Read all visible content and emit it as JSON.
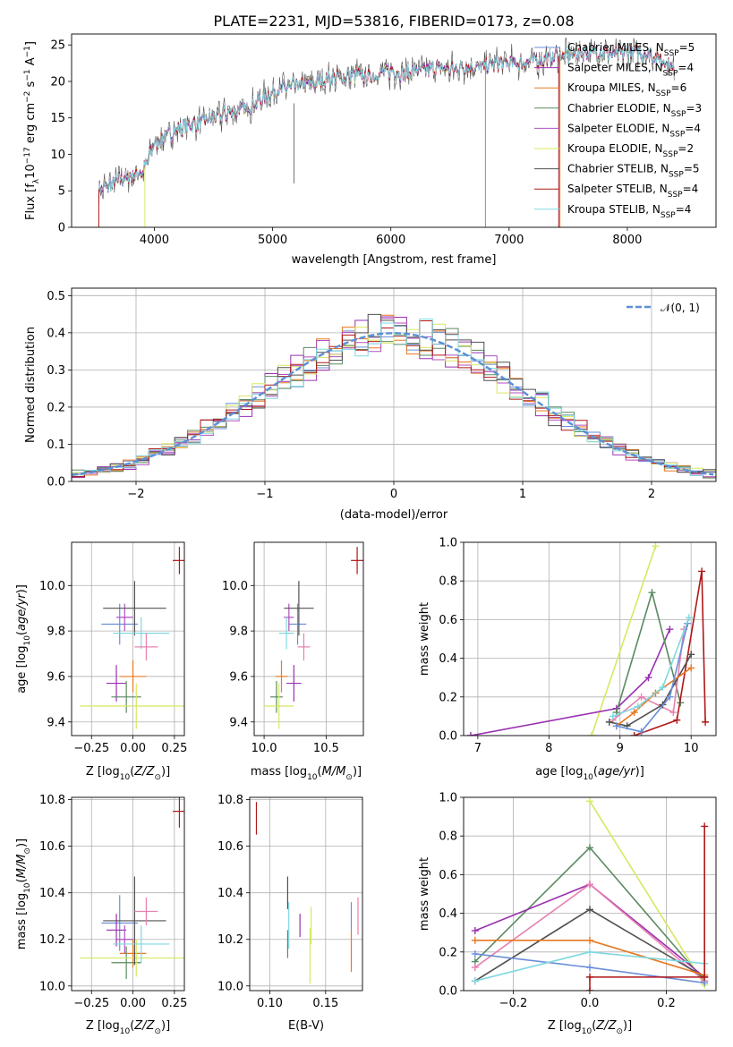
{
  "figure": {
    "title": "PLATE=2231, MJD=53816, FIBERID=0173, z=0.08"
  },
  "colors": {
    "Chabrier MILES": "#6a8fd8",
    "Salpeter MILES": "#9a30b0",
    "Kroupa MILES": "#e87820",
    "Chabrier ELODIE": "#5a8a60",
    "Salpeter ELODIE": "#b050c0",
    "Kroupa ELODIE": "#d8e860",
    "Chabrier STELIB": "#505050",
    "Salpeter STELIB": "#b01818",
    "Kroupa STELIB": "#80d8e0",
    "pink": "#e880b0",
    "gauss": "#5b8fd6"
  },
  "chart_data": [
    {
      "id": "spectrum",
      "type": "line",
      "xlabel": "wavelength [Angstrom, rest frame]",
      "ylabel": "Flux [f_λ10^-17 erg cm^-2 s^-1 A^-1]",
      "xlim": [
        3300,
        8750
      ],
      "ylim": [
        0,
        26.5
      ],
      "xticks": [
        4000,
        5000,
        6000,
        7000,
        8000
      ],
      "yticks": [
        0,
        5,
        10,
        15,
        20,
        25
      ],
      "x": [
        3530,
        3600,
        3700,
        3800,
        3900,
        4000,
        4100,
        4200,
        4300,
        4400,
        4500,
        4600,
        4700,
        4800,
        4900,
        5000,
        5100,
        5200,
        5300,
        5400,
        5500,
        5600,
        5700,
        5800,
        5900,
        6000,
        6100,
        6200,
        6300,
        6400,
        6500,
        6600,
        6700,
        6800,
        6900,
        7000,
        7100,
        7200,
        7300,
        7400,
        7500,
        7600,
        7700,
        7800,
        7900,
        8000,
        8100,
        8200,
        8300,
        8400
      ],
      "y": [
        5.2,
        5.5,
        6.5,
        7.0,
        7.5,
        11.5,
        12.5,
        13.5,
        14.0,
        14.5,
        15.0,
        15.5,
        16.0,
        16.5,
        17.5,
        18.5,
        19.0,
        19.5,
        19.5,
        20.0,
        20.5,
        20.5,
        21.0,
        20.5,
        21.0,
        21.5,
        21.0,
        21.5,
        21.5,
        22.0,
        21.5,
        22.0,
        22.0,
        22.0,
        22.5,
        22.5,
        22.5,
        23.0,
        23.0,
        23.5,
        23.5,
        24.0,
        24.0,
        24.0,
        23.5,
        24.0,
        24.0,
        23.5,
        23.0,
        21.5
      ],
      "legend": [
        {
          "label": "Chabrier MILES, N_SSP=5",
          "color": "#6a8fd8"
        },
        {
          "label": "Salpeter MILES, N_SSP=4",
          "color": "#9a30b0"
        },
        {
          "label": "Kroupa MILES, N_SSP=6",
          "color": "#e87820"
        },
        {
          "label": "Chabrier ELODIE, N_SSP=3",
          "color": "#5a8a60"
        },
        {
          "label": "Salpeter ELODIE, N_SSP=4",
          "color": "#b050c0"
        },
        {
          "label": "Kroupa ELODIE, N_SSP=2",
          "color": "#d8e860"
        },
        {
          "label": "Chabrier STELIB, N_SSP=5",
          "color": "#505050"
        },
        {
          "label": "Salpeter STELIB, N_SSP=4",
          "color": "#b01818"
        },
        {
          "label": "Kroupa STELIB, N_SSP=4",
          "color": "#80d8e0"
        }
      ],
      "legend_placement": "top-right",
      "grid": false
    },
    {
      "id": "residuals",
      "type": "histogram",
      "xlabel": "(data-model)/error",
      "ylabel": "Normed distribution",
      "xlim": [
        -2.5,
        2.5
      ],
      "ylim": [
        0,
        0.52
      ],
      "xticks": [
        -2,
        -1,
        0,
        1,
        2
      ],
      "yticks": [
        0.0,
        0.1,
        0.2,
        0.3,
        0.4,
        0.5
      ],
      "bin_width": 0.1,
      "gaussian_label": "𝒩(0, 1)",
      "grid": true,
      "legend_placement": "top-right"
    },
    {
      "id": "age_vs_Z",
      "type": "errorbar",
      "xlabel": "Z [log10(Z/Z☉)]",
      "ylabel": "age [log10(age/yr)]",
      "xlim": [
        -0.37,
        0.31
      ],
      "ylim": [
        9.34,
        10.19
      ],
      "xticks": [
        -0.25,
        0.0,
        0.25
      ],
      "yticks": [
        9.4,
        9.6,
        9.8,
        10.0
      ],
      "grid": true,
      "points": [
        {
          "color": "#6a8fd8",
          "x": -0.08,
          "xerr": 0.11,
          "y": 9.83,
          "yerr": 0.09
        },
        {
          "color": "#9a30b0",
          "x": -0.1,
          "xerr": 0.06,
          "y": 9.57,
          "yerr": 0.08
        },
        {
          "color": "#e87820",
          "x": 0.0,
          "xerr": 0.08,
          "y": 9.6,
          "yerr": 0.07
        },
        {
          "color": "#5a8a60",
          "x": -0.04,
          "xerr": 0.09,
          "y": 9.51,
          "yerr": 0.07
        },
        {
          "color": "#b050c0",
          "x": -0.05,
          "xerr": 0.05,
          "y": 9.86,
          "yerr": 0.06
        },
        {
          "color": "#d8e860",
          "x": 0.02,
          "xerr": 0.34,
          "y": 9.47,
          "yerr": 0.1
        },
        {
          "color": "#505050",
          "x": 0.01,
          "xerr": 0.19,
          "y": 9.9,
          "yerr": 0.12
        },
        {
          "color": "#b01818",
          "x": 0.28,
          "xerr": 0.04,
          "y": 10.11,
          "yerr": 0.06
        },
        {
          "color": "#80d8e0",
          "x": 0.05,
          "xerr": 0.17,
          "y": 9.79,
          "yerr": 0.07
        },
        {
          "color": "#e880b0",
          "x": 0.08,
          "xerr": 0.07,
          "y": 9.73,
          "yerr": 0.06
        }
      ]
    },
    {
      "id": "age_vs_mass",
      "type": "errorbar",
      "xlabel": "mass [log10(M/M☉)]",
      "ylabel": "",
      "xlim": [
        9.92,
        10.8
      ],
      "ylim": [
        9.34,
        10.19
      ],
      "xticks": [
        10.0,
        10.5
      ],
      "yticks": [
        9.4,
        9.6,
        9.8,
        10.0
      ],
      "grid": true,
      "points": [
        {
          "color": "#6a8fd8",
          "x": 10.27,
          "xerr": 0.07,
          "y": 9.83,
          "yerr": 0.09
        },
        {
          "color": "#9a30b0",
          "x": 10.24,
          "xerr": 0.06,
          "y": 9.57,
          "yerr": 0.08
        },
        {
          "color": "#e87820",
          "x": 10.14,
          "xerr": 0.05,
          "y": 9.6,
          "yerr": 0.07
        },
        {
          "color": "#5a8a60",
          "x": 10.1,
          "xerr": 0.05,
          "y": 9.51,
          "yerr": 0.07
        },
        {
          "color": "#b050c0",
          "x": 10.2,
          "xerr": 0.04,
          "y": 9.86,
          "yerr": 0.06
        },
        {
          "color": "#d8e860",
          "x": 10.12,
          "xerr": 0.12,
          "y": 9.47,
          "yerr": 0.1
        },
        {
          "color": "#505050",
          "x": 10.28,
          "xerr": 0.12,
          "y": 9.9,
          "yerr": 0.12
        },
        {
          "color": "#b01818",
          "x": 10.75,
          "xerr": 0.05,
          "y": 10.11,
          "yerr": 0.06
        },
        {
          "color": "#80d8e0",
          "x": 10.18,
          "xerr": 0.06,
          "y": 9.79,
          "yerr": 0.07
        },
        {
          "color": "#e880b0",
          "x": 10.32,
          "xerr": 0.05,
          "y": 9.73,
          "yerr": 0.06
        }
      ]
    },
    {
      "id": "weight_vs_age",
      "type": "line",
      "xlabel": "age [log10(age/yr)]",
      "ylabel": "mass weight",
      "xlim": [
        6.8,
        10.35
      ],
      "ylim": [
        0,
        1.0
      ],
      "xticks": [
        7,
        8,
        9,
        10
      ],
      "yticks": [
        0.0,
        0.2,
        0.4,
        0.6,
        0.8,
        1.0
      ],
      "grid": true,
      "series": [
        {
          "color": "#d8e860",
          "x": [
            8.6,
            9.5
          ],
          "y": [
            0.0,
            0.98
          ]
        },
        {
          "color": "#9a30b0",
          "x": [
            6.9,
            8.95,
            9.4,
            9.7
          ],
          "y": [
            0.0,
            0.14,
            0.3,
            0.55
          ]
        },
        {
          "color": "#5a8a60",
          "x": [
            8.95,
            9.45,
            9.85
          ],
          "y": [
            0.12,
            0.74,
            0.17
          ]
        },
        {
          "color": "#b01818",
          "x": [
            9.2,
            9.8,
            10.15,
            10.2
          ],
          "y": [
            0.0,
            0.08,
            0.85,
            0.07
          ]
        },
        {
          "color": "#e880b0",
          "x": [
            8.9,
            9.3,
            9.75,
            9.9
          ],
          "y": [
            0.08,
            0.2,
            0.12,
            0.55
          ]
        },
        {
          "color": "#505050",
          "x": [
            8.85,
            9.1,
            9.6,
            10.0
          ],
          "y": [
            0.07,
            0.05,
            0.16,
            0.42
          ]
        },
        {
          "color": "#e87820",
          "x": [
            8.95,
            9.2,
            9.5,
            10.0
          ],
          "y": [
            0.05,
            0.12,
            0.22,
            0.35
          ]
        },
        {
          "color": "#6a8fd8",
          "x": [
            8.95,
            9.3,
            9.7,
            9.95
          ],
          "y": [
            0.05,
            0.02,
            0.2,
            0.58
          ]
        },
        {
          "color": "#80d8e0",
          "x": [
            8.9,
            9.25,
            9.6,
            9.97
          ],
          "y": [
            0.1,
            0.15,
            0.25,
            0.61
          ]
        }
      ]
    },
    {
      "id": "mass_vs_Z",
      "type": "errorbar",
      "xlabel": "Z [log10(Z/Z☉)]",
      "ylabel": "mass [log10(M/M☉)]",
      "xlim": [
        -0.37,
        0.31
      ],
      "ylim": [
        9.98,
        10.81
      ],
      "xticks": [
        -0.25,
        0.0,
        0.25
      ],
      "yticks": [
        10.0,
        10.2,
        10.4,
        10.6,
        10.8
      ],
      "grid": true,
      "points": [
        {
          "color": "#6a8fd8",
          "x": -0.08,
          "xerr": 0.11,
          "y": 10.27,
          "yerr": 0.12
        },
        {
          "color": "#9a30b0",
          "x": -0.1,
          "xerr": 0.06,
          "y": 10.24,
          "yerr": 0.07
        },
        {
          "color": "#e87820",
          "x": 0.0,
          "xerr": 0.08,
          "y": 10.14,
          "yerr": 0.06
        },
        {
          "color": "#5a8a60",
          "x": -0.04,
          "xerr": 0.09,
          "y": 10.1,
          "yerr": 0.07
        },
        {
          "color": "#b050c0",
          "x": -0.05,
          "xerr": 0.05,
          "y": 10.2,
          "yerr": 0.06
        },
        {
          "color": "#d8e860",
          "x": 0.02,
          "xerr": 0.34,
          "y": 10.12,
          "yerr": 0.08
        },
        {
          "color": "#505050",
          "x": 0.01,
          "xerr": 0.19,
          "y": 10.28,
          "yerr": 0.19
        },
        {
          "color": "#b01818",
          "x": 0.28,
          "xerr": 0.04,
          "y": 10.75,
          "yerr": 0.07
        },
        {
          "color": "#80d8e0",
          "x": 0.05,
          "xerr": 0.17,
          "y": 10.18,
          "yerr": 0.08
        },
        {
          "color": "#e880b0",
          "x": 0.08,
          "xerr": 0.07,
          "y": 10.32,
          "yerr": 0.06
        }
      ]
    },
    {
      "id": "mass_vs_EBV",
      "type": "errorbar",
      "xlabel": "E(B-V)",
      "ylabel": "",
      "xlim": [
        0.082,
        0.183
      ],
      "ylim": [
        9.98,
        10.81
      ],
      "xticks": [
        0.1,
        0.15
      ],
      "yticks": [
        10.0,
        10.2,
        10.4,
        10.6,
        10.8
      ],
      "grid": true,
      "points": [
        {
          "color": "#b01818",
          "x": 0.088,
          "xerr": 0.0,
          "y": 10.72,
          "yerr": 0.07
        },
        {
          "color": "#505050",
          "x": 0.116,
          "xerr": 0.0,
          "y": 10.4,
          "yerr": 0.07
        },
        {
          "color": "#5a8a60",
          "x": 0.116,
          "xerr": 0.0,
          "y": 10.18,
          "yerr": 0.06
        },
        {
          "color": "#80d8e0",
          "x": 0.117,
          "xerr": 0.0,
          "y": 10.26,
          "yerr": 0.1
        },
        {
          "color": "#9a30b0",
          "x": 0.127,
          "xerr": 0.0,
          "y": 10.26,
          "yerr": 0.05
        },
        {
          "color": "#d8e860",
          "x": 0.136,
          "xerr": 0.0,
          "y": 10.13,
          "yerr": 0.12
        },
        {
          "color": "#d8e860",
          "x": 0.137,
          "xerr": 0.0,
          "y": 10.26,
          "yerr": 0.08
        },
        {
          "color": "#6a8fd8",
          "x": 0.173,
          "xerr": 0.0,
          "y": 10.3,
          "yerr": 0.06
        },
        {
          "color": "#e87820",
          "x": 0.173,
          "xerr": 0.0,
          "y": 10.15,
          "yerr": 0.09
        },
        {
          "color": "#e880b0",
          "x": 0.179,
          "xerr": 0.0,
          "y": 10.3,
          "yerr": 0.08
        }
      ]
    },
    {
      "id": "weight_vs_Z",
      "type": "line",
      "xlabel": "Z [log10(Z/Z☉)]",
      "ylabel": "mass weight",
      "xlim": [
        -0.33,
        0.33
      ],
      "ylim": [
        0,
        1.0
      ],
      "xticks": [
        -0.2,
        0.0,
        0.2
      ],
      "yticks": [
        0.0,
        0.2,
        0.4,
        0.6,
        0.8,
        1.0
      ],
      "grid": true,
      "series": [
        {
          "color": "#d8e860",
          "x": [
            0.0,
            0.3
          ],
          "y": [
            0.98,
            0.03
          ]
        },
        {
          "color": "#5a8a60",
          "x": [
            -0.3,
            0.0,
            0.3
          ],
          "y": [
            0.15,
            0.74,
            0.05
          ]
        },
        {
          "color": "#9a30b0",
          "x": [
            -0.3,
            0.0,
            0.3
          ],
          "y": [
            0.31,
            0.55,
            0.07
          ]
        },
        {
          "color": "#e880b0",
          "x": [
            -0.3,
            0.0,
            0.3
          ],
          "y": [
            0.12,
            0.55,
            0.05
          ]
        },
        {
          "color": "#505050",
          "x": [
            -0.3,
            0.0,
            0.3
          ],
          "y": [
            0.05,
            0.42,
            0.07
          ]
        },
        {
          "color": "#e87820",
          "x": [
            -0.3,
            0.0,
            0.3
          ],
          "y": [
            0.26,
            0.26,
            0.08
          ]
        },
        {
          "color": "#6a8fd8",
          "x": [
            -0.3,
            0.0,
            0.3
          ],
          "y": [
            0.19,
            0.12,
            0.04
          ]
        },
        {
          "color": "#80d8e0",
          "x": [
            -0.3,
            0.0,
            0.3
          ],
          "y": [
            0.05,
            0.2,
            0.14
          ]
        },
        {
          "color": "#b01818",
          "x": [
            0.0,
            0.0,
            0.3,
            0.3
          ],
          "y": [
            0.0,
            0.07,
            0.07,
            0.85
          ]
        }
      ]
    }
  ]
}
